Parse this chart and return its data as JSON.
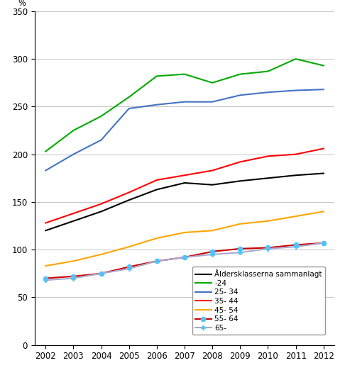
{
  "years": [
    2002,
    2003,
    2004,
    2005,
    2006,
    2007,
    2008,
    2009,
    2010,
    2011,
    2012
  ],
  "series": {
    "Åldersklasserna sammanlagt": {
      "values": [
        120,
        130,
        140,
        152,
        163,
        170,
        168,
        172,
        175,
        178,
        180
      ],
      "color": "#000000",
      "linewidth": 1.5,
      "marker": null,
      "markersize": 0,
      "zorder": 3
    },
    "-24": {
      "values": [
        203,
        225,
        240,
        260,
        282,
        284,
        275,
        284,
        287,
        300,
        293
      ],
      "color": "#00aa00",
      "linewidth": 1.5,
      "marker": null,
      "markersize": 0,
      "zorder": 3
    },
    "25- 34": {
      "values": [
        183,
        200,
        215,
        248,
        252,
        255,
        255,
        262,
        265,
        267,
        268
      ],
      "color": "#4472c4",
      "linewidth": 1.5,
      "marker": null,
      "markersize": 0,
      "zorder": 3
    },
    "35- 44": {
      "values": [
        128,
        138,
        148,
        160,
        173,
        178,
        183,
        192,
        198,
        200,
        206
      ],
      "color": "#ff0000",
      "linewidth": 1.5,
      "marker": null,
      "markersize": 0,
      "zorder": 3
    },
    "45- 54": {
      "values": [
        83,
        88,
        95,
        103,
        112,
        118,
        120,
        127,
        130,
        135,
        140
      ],
      "color": "#ffa500",
      "linewidth": 1.5,
      "marker": null,
      "markersize": 0,
      "zorder": 3
    },
    "55- 64": {
      "values": [
        70,
        72,
        75,
        82,
        88,
        92,
        98,
        101,
        102,
        105,
        107
      ],
      "color": "#cc0000",
      "linewidth": 1.5,
      "marker": "o",
      "markersize": 5,
      "markerfacecolor": "#4dc3ff",
      "markeredgecolor": "#4dc3ff",
      "zorder": 4
    },
    "65-": {
      "values": [
        68,
        70,
        75,
        80,
        88,
        92,
        95,
        97,
        101,
        103,
        107
      ],
      "color": "#aaaacc",
      "linewidth": 1.5,
      "marker": "P",
      "markersize": 5,
      "markerfacecolor": "#4dc3ff",
      "markeredgecolor": "#4dc3ff",
      "zorder": 4
    }
  },
  "ylabel": "%",
  "ylim": [
    0,
    350
  ],
  "yticks": [
    0,
    50,
    100,
    150,
    200,
    250,
    300,
    350
  ],
  "xlim": [
    2002,
    2012
  ],
  "xticks": [
    2002,
    2003,
    2004,
    2005,
    2006,
    2007,
    2008,
    2009,
    2010,
    2011,
    2012
  ],
  "legend_loc": "lower right",
  "legend_fontsize": 7.5,
  "tick_fontsize": 8.5,
  "background_color": "#ffffff",
  "grid_color": "#bbbbbb"
}
